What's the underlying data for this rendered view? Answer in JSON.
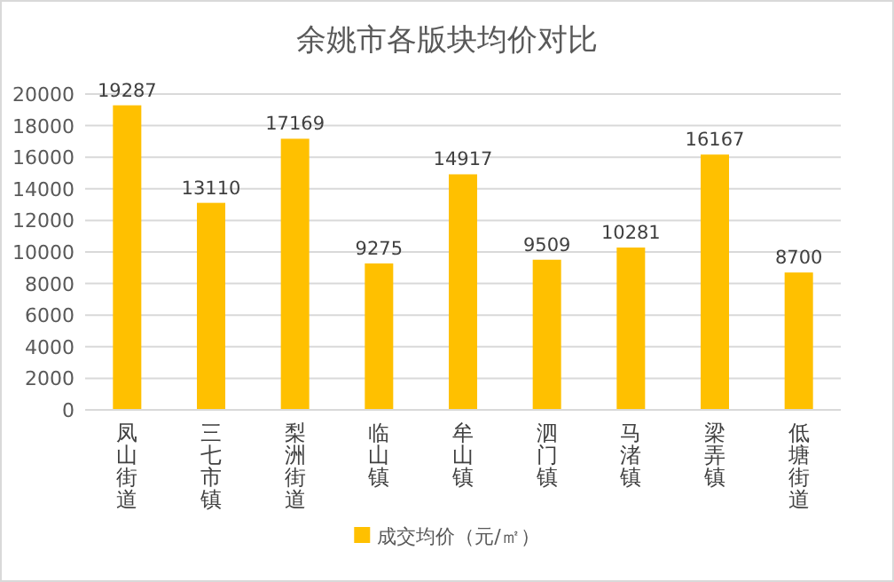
{
  "chart_data": {
    "type": "bar",
    "title": "余姚市各版块均价对比",
    "categories": [
      "凤山街道",
      "三七市镇",
      "梨洲街道",
      "临山镇",
      "牟山镇",
      "泗门镇",
      "马渚镇",
      "梁弄镇",
      "低塘街道"
    ],
    "series": [
      {
        "name": "成交均价（元/㎡）",
        "color": "#ffc000",
        "values": [
          19287,
          13110,
          17169,
          9275,
          14917,
          9509,
          10281,
          16167,
          8700
        ]
      }
    ],
    "ylim": [
      0,
      20000
    ],
    "yticks": [
      0,
      2000,
      4000,
      6000,
      8000,
      10000,
      12000,
      14000,
      16000,
      18000,
      20000
    ],
    "grid": "y",
    "data_labels": true,
    "legend": "bottom"
  }
}
